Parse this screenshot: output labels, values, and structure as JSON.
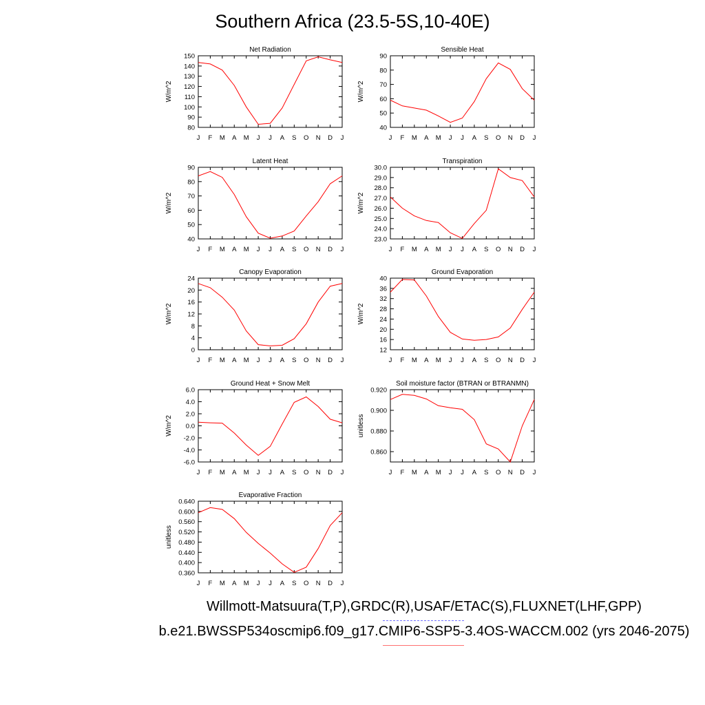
{
  "figure": {
    "title": "Southern Africa (23.5-5S,10-40E)",
    "caption_obs": "Willmott-Matsuura(T,P),GRDC(R),USAF/ETAC(S),FLUXNET(LHF,GPP)",
    "caption_model": "b.e21.BWSSP534oscmip6.f09_g17.CMIP6-SSP5-3.4OS-WACCM.002 (yrs 2046-2075)",
    "obs_line_color": "#7070ff",
    "model_line_color": "#ff7070"
  },
  "chart_data": [
    {
      "type": "line",
      "title": "Net Radiation",
      "ylabel": "W/m^2",
      "categories": [
        "J",
        "F",
        "M",
        "A",
        "M",
        "J",
        "J",
        "A",
        "S",
        "O",
        "N",
        "D",
        "J"
      ],
      "ylim": [
        80,
        150
      ],
      "yticks": [
        "80",
        "90",
        "100",
        "110",
        "120",
        "130",
        "140",
        "150"
      ],
      "ytick_values": [
        80,
        90,
        100,
        110,
        120,
        130,
        140,
        150
      ],
      "series": [
        {
          "color": "#ff0000",
          "values": [
            143.5,
            142,
            136,
            121,
            100,
            83,
            84,
            99,
            122,
            145,
            149,
            146,
            143.5
          ]
        }
      ]
    },
    {
      "type": "line",
      "title": "Sensible Heat",
      "ylabel": "W/m^2",
      "categories": [
        "J",
        "F",
        "M",
        "A",
        "M",
        "J",
        "J",
        "A",
        "S",
        "O",
        "N",
        "D",
        "J"
      ],
      "ylim": [
        40,
        90
      ],
      "yticks": [
        "40",
        "50",
        "60",
        "70",
        "80",
        "90"
      ],
      "ytick_values": [
        40,
        50,
        60,
        70,
        80,
        90
      ],
      "series": [
        {
          "color": "#ff0000",
          "values": [
            59,
            55,
            53.5,
            52,
            48,
            43.5,
            46.5,
            58,
            74,
            85,
            80.5,
            67,
            59
          ]
        }
      ]
    },
    {
      "type": "line",
      "title": "Latent Heat",
      "ylabel": "W/m^2",
      "categories": [
        "J",
        "F",
        "M",
        "A",
        "M",
        "J",
        "J",
        "A",
        "S",
        "O",
        "N",
        "D",
        "J"
      ],
      "ylim": [
        40,
        90
      ],
      "yticks": [
        "40",
        "50",
        "60",
        "70",
        "80",
        "90"
      ],
      "ytick_values": [
        40,
        50,
        60,
        70,
        80,
        90
      ],
      "series": [
        {
          "color": "#ff0000",
          "values": [
            84,
            87,
            83,
            71,
            55.5,
            44,
            40.5,
            42,
            45.5,
            56,
            66,
            78.5,
            84
          ]
        }
      ]
    },
    {
      "type": "line",
      "title": "Transpiration",
      "ylabel": "W/m^2",
      "categories": [
        "J",
        "F",
        "M",
        "A",
        "M",
        "J",
        "J",
        "A",
        "S",
        "O",
        "N",
        "D",
        "J"
      ],
      "ylim": [
        23.0,
        30.0
      ],
      "yticks": [
        "23.0",
        "24.0",
        "25.0",
        "26.0",
        "27.0",
        "28.0",
        "29.0",
        "30.0"
      ],
      "ytick_values": [
        23,
        24,
        25,
        26,
        27,
        28,
        29,
        30
      ],
      "series": [
        {
          "color": "#ff0000",
          "values": [
            27.1,
            26.0,
            25.25,
            24.8,
            24.6,
            23.6,
            23.05,
            24.5,
            25.8,
            29.85,
            29.0,
            28.7,
            27.1
          ]
        }
      ]
    },
    {
      "type": "line",
      "title": "Canopy Evaporation",
      "ylabel": "W/m^2",
      "categories": [
        "J",
        "F",
        "M",
        "A",
        "M",
        "J",
        "J",
        "A",
        "S",
        "O",
        "N",
        "D",
        "J"
      ],
      "ylim": [
        0,
        24
      ],
      "yticks": [
        "0",
        "4",
        "8",
        "12",
        "16",
        "20",
        "24"
      ],
      "ytick_values": [
        0,
        4,
        8,
        12,
        16,
        20,
        24
      ],
      "series": [
        {
          "color": "#ff0000",
          "values": [
            22.2,
            20.8,
            17.6,
            13.3,
            6.3,
            1.7,
            1.3,
            1.5,
            3.7,
            8.7,
            16,
            21.3,
            22.2
          ]
        }
      ]
    },
    {
      "type": "line",
      "title": "Ground Evaporation",
      "ylabel": "W/m^2",
      "categories": [
        "J",
        "F",
        "M",
        "A",
        "M",
        "J",
        "J",
        "A",
        "S",
        "O",
        "N",
        "D",
        "J"
      ],
      "ylim": [
        12,
        40
      ],
      "yticks": [
        "12",
        "16",
        "20",
        "24",
        "28",
        "32",
        "36",
        "40"
      ],
      "ytick_values": [
        12,
        16,
        20,
        24,
        28,
        32,
        36,
        40
      ],
      "series": [
        {
          "color": "#ff0000",
          "values": [
            34.5,
            39.5,
            39.3,
            33,
            25,
            18.8,
            16.2,
            15.7,
            16,
            17,
            20.5,
            27.8,
            34.5
          ]
        }
      ]
    },
    {
      "type": "line",
      "title": "Ground Heat + Snow Melt",
      "ylabel": "W/m^2",
      "categories": [
        "J",
        "F",
        "M",
        "A",
        "M",
        "J",
        "J",
        "A",
        "S",
        "O",
        "N",
        "D",
        "J"
      ],
      "ylim": [
        -6.0,
        6.0
      ],
      "yticks": [
        "-6.0",
        "-4.0",
        "-2.0",
        "0.0",
        "2.0",
        "4.0",
        "6.0"
      ],
      "ytick_values": [
        -6,
        -4,
        -2,
        0,
        2,
        4,
        6
      ],
      "series": [
        {
          "color": "#ff0000",
          "values": [
            0.6,
            0.5,
            0.45,
            -1.2,
            -3.2,
            -4.9,
            -3.4,
            0.3,
            3.9,
            4.8,
            3.2,
            1.1,
            0.5
          ]
        }
      ]
    },
    {
      "type": "line",
      "title": "Soil moisture factor (BTRAN or BTRANMN)",
      "ylabel": "unitless",
      "categories": [
        "J",
        "F",
        "M",
        "A",
        "M",
        "J",
        "J",
        "A",
        "S",
        "O",
        "N",
        "D",
        "J"
      ],
      "ylim": [
        0.85,
        0.92
      ],
      "yticks": [
        "0.860",
        "0.880",
        "0.900",
        "0.920"
      ],
      "ytick_values": [
        0.86,
        0.88,
        0.9,
        0.92
      ],
      "series": [
        {
          "color": "#ff0000",
          "values": [
            0.9105,
            0.9155,
            0.9145,
            0.911,
            0.9045,
            0.9025,
            0.901,
            0.891,
            0.8675,
            0.8625,
            0.85,
            0.885,
            0.9105
          ]
        }
      ]
    },
    {
      "type": "line",
      "title": "Evaporative Fraction",
      "ylabel": "unitless",
      "categories": [
        "J",
        "F",
        "M",
        "A",
        "M",
        "J",
        "J",
        "A",
        "S",
        "O",
        "N",
        "D",
        "J"
      ],
      "ylim": [
        0.36,
        0.64
      ],
      "yticks": [
        "0.360",
        "0.400",
        "0.440",
        "0.480",
        "0.520",
        "0.560",
        "0.600",
        "0.640"
      ],
      "ytick_values": [
        0.36,
        0.4,
        0.44,
        0.48,
        0.52,
        0.56,
        0.6,
        0.64
      ],
      "series": [
        {
          "color": "#ff0000",
          "values": [
            0.595,
            0.615,
            0.608,
            0.572,
            0.518,
            0.475,
            0.437,
            0.395,
            0.362,
            0.382,
            0.455,
            0.545,
            0.595
          ]
        }
      ]
    }
  ]
}
